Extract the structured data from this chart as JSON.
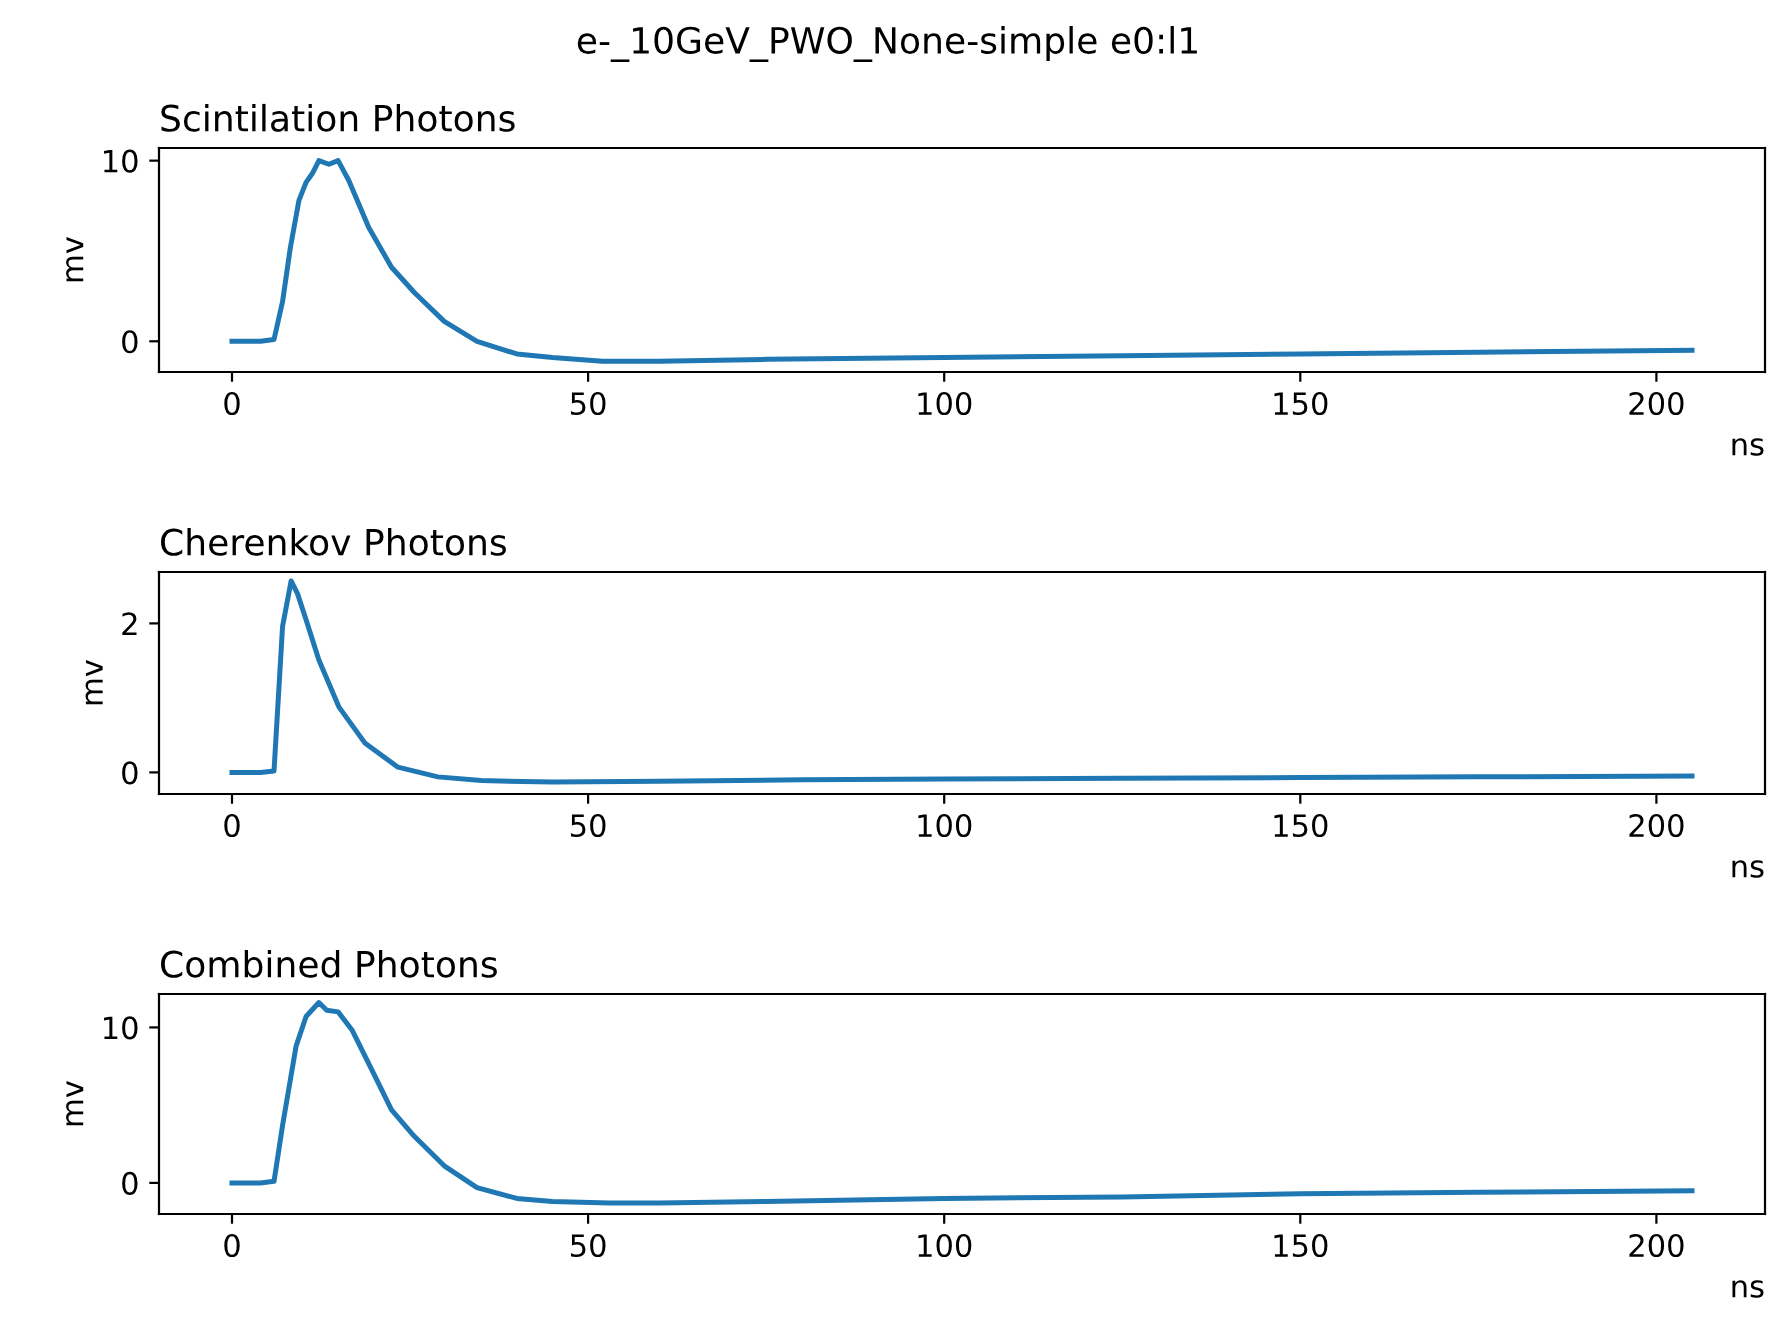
{
  "chart_data": [
    {
      "type": "line",
      "title": "Scintilation Photons",
      "xlabel": "ns",
      "ylabel": "mv",
      "annotations": [
        "e-_10GeV_PWO_None-simple e0:l1"
      ],
      "x": [
        0,
        2,
        4,
        5.9,
        7.1,
        8.2,
        9.4,
        10.4,
        11.3,
        12.2,
        13.6,
        14.9,
        16.4,
        19.2,
        22.4,
        25.6,
        29.8,
        34.4,
        40,
        45,
        52,
        60,
        75,
        100,
        125,
        150,
        175,
        205
      ],
      "series": [
        {
          "color": "#1f77b4",
          "values": [
            0,
            0,
            0,
            0.1,
            2.2,
            5.2,
            7.8,
            8.8,
            9.3,
            10.0,
            9.8,
            10.0,
            8.9,
            6.3,
            4.1,
            2.7,
            1.1,
            0.0,
            -0.7,
            -0.9,
            -1.1,
            -1.1,
            -1.0,
            -0.9,
            -0.8,
            -0.7,
            -0.6,
            -0.5
          ]
        }
      ],
      "xlim": [
        -10.25,
        215.25
      ],
      "xticks": [
        0,
        50,
        100,
        150,
        200
      ],
      "ylim": [
        -1.7,
        10.7
      ],
      "yticks": [
        0,
        10
      ],
      "grid": false
    },
    {
      "type": "line",
      "title": "Cherenkov Photons",
      "xlabel": "ns",
      "ylabel": "mv",
      "x": [
        0,
        2,
        4,
        5.9,
        7.1,
        8.3,
        9.2,
        10.4,
        12.2,
        15,
        18.7,
        23.3,
        28.9,
        35,
        45,
        60,
        80,
        100,
        125,
        150,
        175,
        205
      ],
      "series": [
        {
          "color": "#1f77b4",
          "values": [
            0,
            0,
            0,
            0.02,
            1.96,
            2.57,
            2.4,
            2.05,
            1.51,
            0.88,
            0.39,
            0.07,
            -0.06,
            -0.11,
            -0.13,
            -0.12,
            -0.1,
            -0.09,
            -0.08,
            -0.07,
            -0.06,
            -0.05
          ]
        }
      ],
      "xlim": [
        -10.25,
        215.25
      ],
      "xticks": [
        0,
        50,
        100,
        150,
        200
      ],
      "ylim": [
        -0.29,
        2.69
      ],
      "yticks": [
        0,
        2
      ],
      "grid": false
    },
    {
      "type": "line",
      "title": "Combined Photons",
      "xlabel": "ns",
      "ylabel": "mv",
      "x": [
        0,
        2,
        4,
        5.9,
        7.1,
        9.0,
        10.4,
        12.2,
        13.3,
        14.9,
        16.9,
        19.6,
        22.4,
        25.6,
        29.8,
        34.4,
        40,
        45,
        53,
        60,
        75,
        100,
        125,
        150,
        175,
        205
      ],
      "series": [
        {
          "color": "#1f77b4",
          "values": [
            0,
            0,
            0,
            0.1,
            3.7,
            8.8,
            10.7,
            11.6,
            11.1,
            11.0,
            9.8,
            7.3,
            4.7,
            3.0,
            1.1,
            -0.3,
            -1.0,
            -1.2,
            -1.3,
            -1.3,
            -1.2,
            -1.0,
            -0.9,
            -0.7,
            -0.6,
            -0.5
          ]
        }
      ],
      "xlim": [
        -10.25,
        215.25
      ],
      "xticks": [
        0,
        50,
        100,
        150,
        200
      ],
      "ylim": [
        -2.0,
        12.15
      ],
      "yticks": [
        0,
        10
      ],
      "grid": false
    }
  ]
}
